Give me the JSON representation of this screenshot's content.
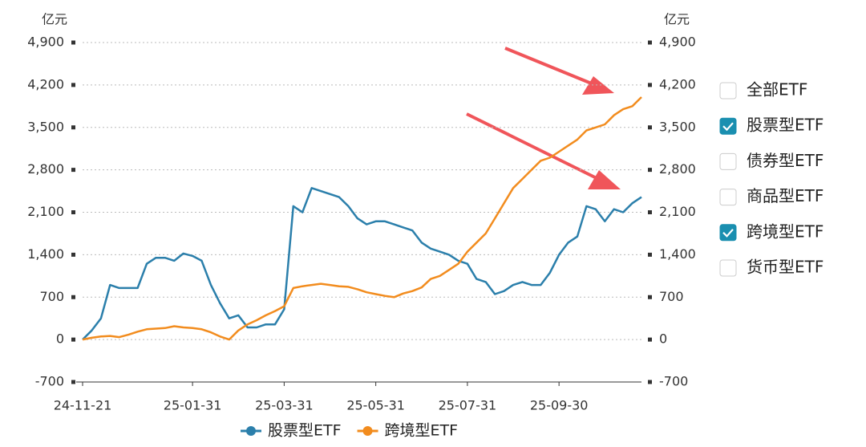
{
  "chart_data": {
    "type": "line",
    "y_label": "亿元",
    "y2_label": "亿元",
    "categories": [
      "24-11-21",
      null,
      null,
      null,
      null,
      null,
      null,
      null,
      null,
      null,
      null,
      null,
      "25-01-31",
      null,
      null,
      null,
      null,
      null,
      null,
      null,
      null,
      null,
      "25-03-31",
      null,
      null,
      null,
      null,
      null,
      null,
      null,
      null,
      null,
      "25-05-31",
      null,
      null,
      null,
      null,
      null,
      null,
      null,
      null,
      null,
      "25-07-31",
      null,
      null,
      null,
      null,
      null,
      null,
      null,
      null,
      null,
      "25-09-30",
      null,
      null,
      null,
      null,
      null,
      null,
      null,
      null,
      null
    ],
    "series": [
      {
        "name": "股票型ETF",
        "color": "#2b7fab",
        "values": [
          0,
          150,
          350,
          900,
          850,
          850,
          850,
          1250,
          1350,
          1350,
          1300,
          1420,
          1380,
          1300,
          900,
          600,
          350,
          400,
          200,
          200,
          250,
          250,
          500,
          2200,
          2100,
          2500,
          2450,
          2400,
          2350,
          2200,
          2000,
          1900,
          1950,
          1950,
          1900,
          1850,
          1800,
          1600,
          1500,
          1450,
          1400,
          1300,
          1250,
          1000,
          950,
          750,
          800,
          900,
          950,
          900,
          900,
          1100,
          1400,
          1600,
          1700,
          2200,
          2150,
          1950,
          2150,
          2100,
          2250,
          2350
        ]
      },
      {
        "name": "跨境型ETF",
        "color": "#f28c1e",
        "values": [
          0,
          30,
          50,
          60,
          40,
          80,
          130,
          170,
          180,
          190,
          220,
          200,
          190,
          170,
          120,
          50,
          0,
          150,
          250,
          320,
          400,
          470,
          550,
          850,
          880,
          900,
          920,
          900,
          880,
          870,
          830,
          780,
          750,
          720,
          700,
          760,
          800,
          860,
          1000,
          1050,
          1150,
          1250,
          1450,
          1600,
          1750,
          2000,
          2250,
          2500,
          2650,
          2800,
          2950,
          3000,
          3100,
          3200,
          3300,
          3450,
          3500,
          3550,
          3700,
          3800,
          3850,
          4000
        ]
      }
    ],
    "ylim": [
      -700,
      4900
    ],
    "yticks": [
      -700,
      0,
      700,
      {
        "value": 1400,
        "label": "1,400"
      },
      {
        "value": 2100,
        "label": "2,100"
      },
      {
        "value": 2800,
        "label": "2,800"
      },
      {
        "value": 3500,
        "label": "3,500"
      },
      {
        "value": 4200,
        "label": "4,200"
      },
      {
        "value": 4900,
        "label": "4,900"
      }
    ],
    "y2lim": [
      -700,
      4900
    ],
    "y2ticks": [
      -700,
      0,
      700,
      {
        "value": 1400,
        "label": "1,400"
      },
      {
        "value": 2100,
        "label": "2,100"
      },
      {
        "value": 2800,
        "label": "2,800"
      },
      {
        "value": 3500,
        "label": "3,500"
      },
      {
        "value": 4200,
        "label": "4,200"
      },
      {
        "value": 4900,
        "label": "4,900"
      }
    ],
    "grid": true,
    "legend": "bottom"
  },
  "filters": [
    {
      "label": "全部ETF",
      "checked": false
    },
    {
      "label": "股票型ETF",
      "checked": true
    },
    {
      "label": "债券型ETF",
      "checked": false
    },
    {
      "label": "商品型ETF",
      "checked": false
    },
    {
      "label": "跨境型ETF",
      "checked": true
    },
    {
      "label": "货币型ETF",
      "checked": false
    }
  ]
}
